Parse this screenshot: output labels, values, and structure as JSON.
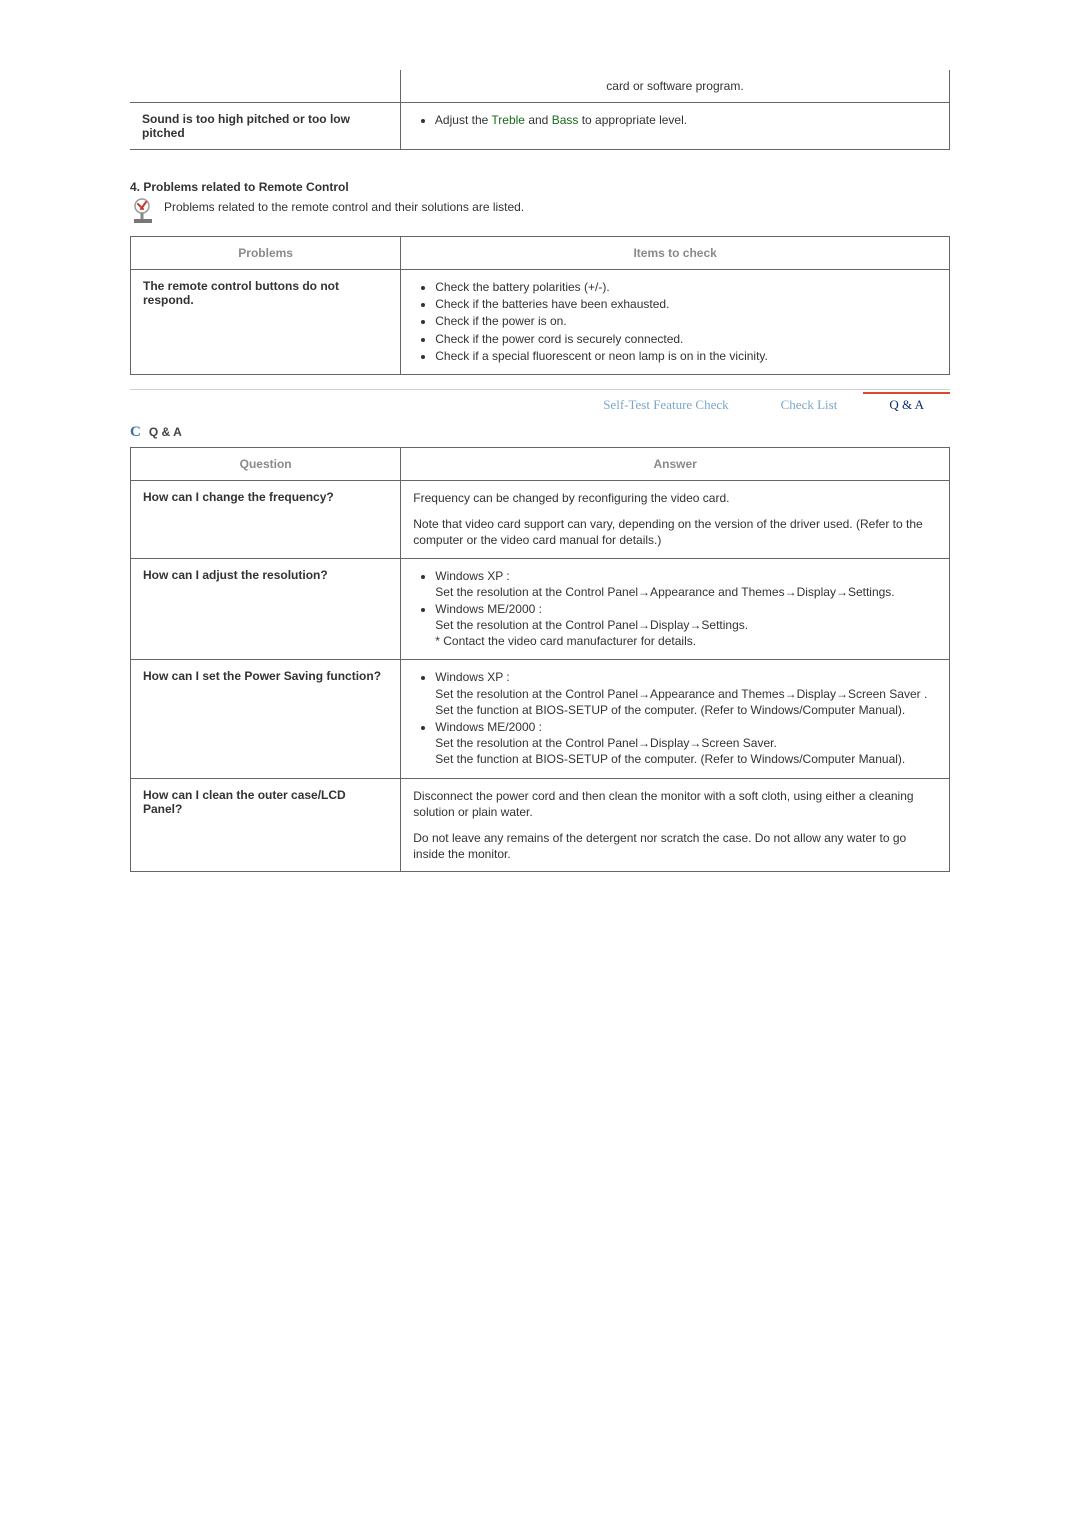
{
  "colors": {
    "border": "#666666",
    "muted": "#8a8a8a",
    "link_green": "#1a6a1a",
    "nav_inactive": "#7aa7c9",
    "nav_active": "#0a2f6e",
    "nav_accent": "#d94a2a"
  },
  "sound_table": {
    "row1_right": "card or software program.",
    "row2_left": "Sound is too high pitched or too low pitched",
    "row2_right_pre": "Adjust the ",
    "row2_right_link1": "Treble",
    "row2_right_mid": " and ",
    "row2_right_link2": "Bass",
    "row2_right_post": " to appropriate level."
  },
  "remote_section": {
    "title": "4. Problems related to Remote Control",
    "note": "Problems related to the remote control and their solutions are listed.",
    "header_problems": "Problems",
    "header_items": "Items to check",
    "problem": "The remote control buttons do not respond.",
    "items": [
      "Check the battery polarities (+/-).",
      "Check if the batteries have been exhausted.",
      "Check if the power is on.",
      "Check if the power cord is securely connected.",
      "Check if a special fluorescent or neon lamp is on in the vicinity."
    ]
  },
  "nav": {
    "self_test": "Self-Test Feature Check",
    "check_list": "Check List",
    "qa": "Q & A"
  },
  "qa_header_label": "Q & A",
  "qa_table": {
    "header_q": "Question",
    "header_a": "Answer",
    "rows": [
      {
        "q": "How can I change the frequency?",
        "a_type": "paras",
        "paras": [
          "Frequency can be changed by reconfiguring the video card.",
          "Note that video card support can vary, depending on the version of the driver used. (Refer to the computer or the video card manual for details.)"
        ]
      },
      {
        "q": "How can I adjust the resolution?",
        "a_type": "list",
        "items": [
          "Windows XP :\nSet the resolution at the Control Panel→Appearance and Themes→Display→Settings.",
          "Windows ME/2000 :\nSet the resolution at the Control Panel→Display→Settings.\n* Contact the video card manufacturer for details."
        ]
      },
      {
        "q": "How can I set the Power Saving function?",
        "a_type": "list",
        "items": [
          "Windows XP :\nSet the resolution at the Control Panel→Appearance and Themes→Display→Screen Saver .\nSet the function at BIOS-SETUP of the computer. (Refer to Windows/Computer Manual).",
          "Windows ME/2000 :\nSet the resolution at the Control Panel→Display→Screen Saver.\nSet the function at BIOS-SETUP of the computer. (Refer to Windows/Computer Manual)."
        ]
      },
      {
        "q": "How can I clean the outer case/LCD Panel?",
        "a_type": "paras",
        "paras": [
          "Disconnect the power cord and then clean the monitor with a soft cloth, using either a cleaning solution or plain water.",
          "Do not leave any remains of the detergent nor scratch the case. Do not allow any water to go inside the monitor."
        ]
      }
    ]
  }
}
